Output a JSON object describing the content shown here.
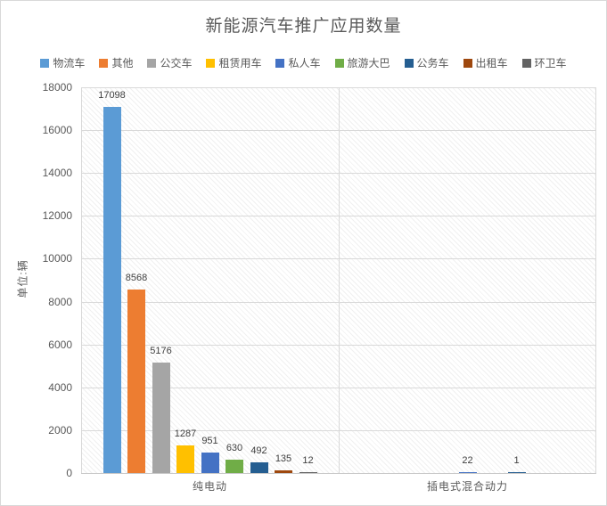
{
  "title": "新能源汽车推广应用数量",
  "chart_data": {
    "type": "bar",
    "title": "新能源汽车推广应用数量",
    "categories": [
      "纯电动",
      "插电式混合动力"
    ],
    "series": [
      {
        "name": "物流车",
        "color": "#5B9BD5",
        "values": [
          17098,
          null
        ]
      },
      {
        "name": "其他",
        "color": "#ED7D31",
        "values": [
          8568,
          null
        ]
      },
      {
        "name": "公交车",
        "color": "#A5A5A5",
        "values": [
          5176,
          null
        ]
      },
      {
        "name": "租赁用车",
        "color": "#FFC000",
        "values": [
          1287,
          null
        ]
      },
      {
        "name": "私人车",
        "color": "#4472C4",
        "values": [
          951,
          22
        ]
      },
      {
        "name": "旅游大巴",
        "color": "#70AD47",
        "values": [
          630,
          null
        ]
      },
      {
        "name": "公务车",
        "color": "#255E91",
        "values": [
          492,
          1
        ]
      },
      {
        "name": "出租车",
        "color": "#9E480E",
        "values": [
          135,
          null
        ]
      },
      {
        "name": "环卫车",
        "color": "#636363",
        "values": [
          12,
          null
        ]
      }
    ],
    "xlabel": "",
    "ylabel": "单位:辆",
    "ylim": [
      0,
      18000
    ],
    "ytick_step": 2000,
    "grid": true,
    "legend_position": "top",
    "data_labels": true,
    "plot_background": "diagonal-hatch"
  },
  "colors": {
    "title_text": "#595959",
    "axis_text": "#595959",
    "data_label_text": "#404040",
    "gridline": "#D9D9D9",
    "chart_border": "#D9D9D9"
  }
}
